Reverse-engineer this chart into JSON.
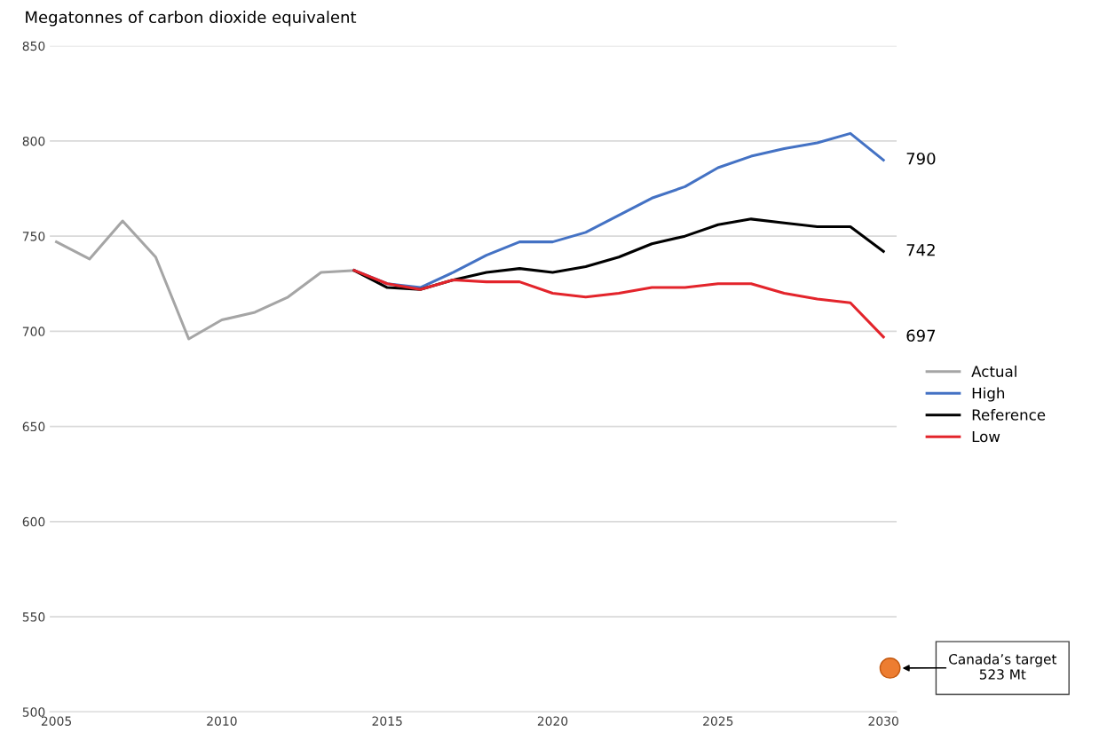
{
  "chart_data": {
    "type": "line",
    "ylabel": "Megatonnes of carbon dioxide equivalent",
    "xlim": [
      2004.8,
      2030.4
    ],
    "xticks": [
      2005,
      2010,
      2015,
      2020,
      2025,
      2030
    ],
    "ylim": [
      500,
      850
    ],
    "yticks": [
      500,
      550,
      600,
      650,
      700,
      750,
      800,
      850
    ],
    "grid": "y",
    "legend": "right",
    "line_style": "solid",
    "marker": "none",
    "series": [
      {
        "name": "Actual",
        "color": "#a5a5a5",
        "x": [
          2005,
          2006,
          2007,
          2008,
          2009,
          2010,
          2011,
          2012,
          2013,
          2014
        ],
        "values": [
          747,
          738,
          758,
          739,
          696,
          706,
          710,
          718,
          731,
          732
        ]
      },
      {
        "name": "High",
        "color": "#4472c4",
        "x": [
          2014,
          2015,
          2016,
          2017,
          2018,
          2019,
          2020,
          2021,
          2022,
          2023,
          2024,
          2025,
          2026,
          2027,
          2028,
          2029,
          2030
        ],
        "values": [
          732,
          725,
          723,
          731,
          740,
          747,
          747,
          752,
          761,
          770,
          776,
          786,
          792,
          796,
          799,
          804,
          790
        ],
        "value_labels": [
          null,
          null,
          null,
          null,
          null,
          null,
          null,
          null,
          null,
          null,
          null,
          null,
          null,
          null,
          null,
          null,
          "790"
        ]
      },
      {
        "name": "Reference",
        "color": "#000000",
        "x": [
          2014,
          2015,
          2016,
          2017,
          2018,
          2019,
          2020,
          2021,
          2022,
          2023,
          2024,
          2025,
          2026,
          2027,
          2028,
          2029,
          2030
        ],
        "values": [
          732,
          723,
          722,
          727,
          731,
          733,
          731,
          734,
          739,
          746,
          750,
          756,
          759,
          757,
          755,
          755,
          742
        ],
        "value_labels": [
          null,
          null,
          null,
          null,
          null,
          null,
          null,
          null,
          null,
          null,
          null,
          null,
          null,
          null,
          null,
          null,
          "742"
        ]
      },
      {
        "name": "Low",
        "color": "#e3242b",
        "x": [
          2014,
          2015,
          2016,
          2017,
          2018,
          2019,
          2020,
          2021,
          2022,
          2023,
          2024,
          2025,
          2026,
          2027,
          2028,
          2029,
          2030
        ],
        "values": [
          732,
          725,
          722,
          727,
          726,
          726,
          720,
          718,
          720,
          723,
          723,
          725,
          725,
          720,
          717,
          715,
          697
        ],
        "value_labels": [
          null,
          null,
          null,
          null,
          null,
          null,
          null,
          null,
          null,
          null,
          null,
          null,
          null,
          null,
          null,
          null,
          "697"
        ]
      },
      {
        "type": "scatter",
        "marker": "circle",
        "color": "#ed7d31",
        "x": [
          2030.2
        ],
        "values": [
          523
        ]
      }
    ],
    "annotations": [
      "Canada’s target\n523 Mt"
    ]
  }
}
